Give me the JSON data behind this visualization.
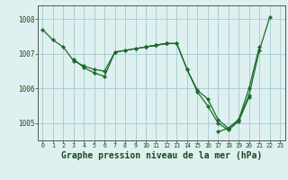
{
  "bg_color": "#dff0f0",
  "grid_color": "#aacfcf",
  "line_color": "#1a6b2a",
  "marker_color": "#1a6b2a",
  "xlabel": "Graphe pression niveau de la mer (hPa)",
  "xlabel_fontsize": 7.0,
  "ylim": [
    1004.5,
    1008.4
  ],
  "xlim": [
    -0.5,
    23.5
  ],
  "yticks": [
    1005,
    1006,
    1007,
    1008
  ],
  "xticks": [
    0,
    1,
    2,
    3,
    4,
    5,
    6,
    7,
    8,
    9,
    10,
    11,
    12,
    13,
    14,
    15,
    16,
    17,
    18,
    19,
    20,
    21,
    22,
    23
  ],
  "series": [
    [
      1007.7,
      1007.4,
      1007.2,
      1006.8,
      1006.65,
      1006.55,
      1006.5,
      1007.05,
      1007.1,
      1007.15,
      1007.2,
      1007.25,
      1007.3,
      1007.3,
      1006.55,
      1005.95,
      1005.7,
      1005.1,
      1004.85,
      1005.1,
      1005.8,
      1007.1,
      1008.05,
      null
    ],
    [
      null,
      null,
      null,
      1006.85,
      1006.6,
      1006.45,
      1006.35,
      1007.05,
      1007.1,
      1007.15,
      1007.2,
      1007.25,
      1007.3,
      null,
      null,
      null,
      null,
      null,
      null,
      null,
      null,
      null,
      null,
      null
    ],
    [
      null,
      null,
      null,
      null,
      null,
      null,
      null,
      null,
      null,
      null,
      1007.2,
      1007.25,
      1007.3,
      1007.3,
      1006.55,
      1005.9,
      1005.5,
      1005.0,
      1004.8,
      1005.05,
      1005.75,
      null,
      null,
      null
    ],
    [
      null,
      null,
      null,
      null,
      null,
      null,
      null,
      null,
      null,
      null,
      null,
      null,
      null,
      null,
      null,
      null,
      null,
      1004.75,
      1004.85,
      1005.1,
      1006.0,
      1007.2,
      null,
      null
    ]
  ]
}
